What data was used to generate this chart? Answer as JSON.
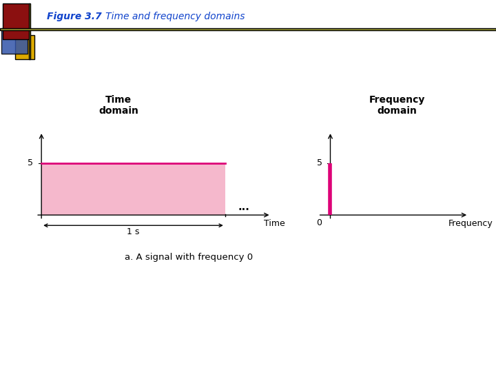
{
  "title_bold": "Figure 3.7",
  "title_italic": "   Time and frequency domains",
  "title_color": "#1144cc",
  "background_color": "#ffffff",
  "signal_value": 5,
  "signal_color": "#dd0077",
  "signal_fill_color": "#f5b8cc",
  "time_domain_label": "Time\ndomain",
  "freq_domain_label": "Frequency\ndomain",
  "time_axis_label": "Time",
  "freq_axis_label": "Frequency",
  "caption": "a. A signal with frequency 0",
  "dots": "...",
  "brace_label": "1 s",
  "y_tick_label": "5",
  "origin_label": "0",
  "header_sq1_color": "#8B1010",
  "header_sq2_color": "#3355aa",
  "header_sq3_color": "#ddaa00",
  "header_line_color": "#999933"
}
